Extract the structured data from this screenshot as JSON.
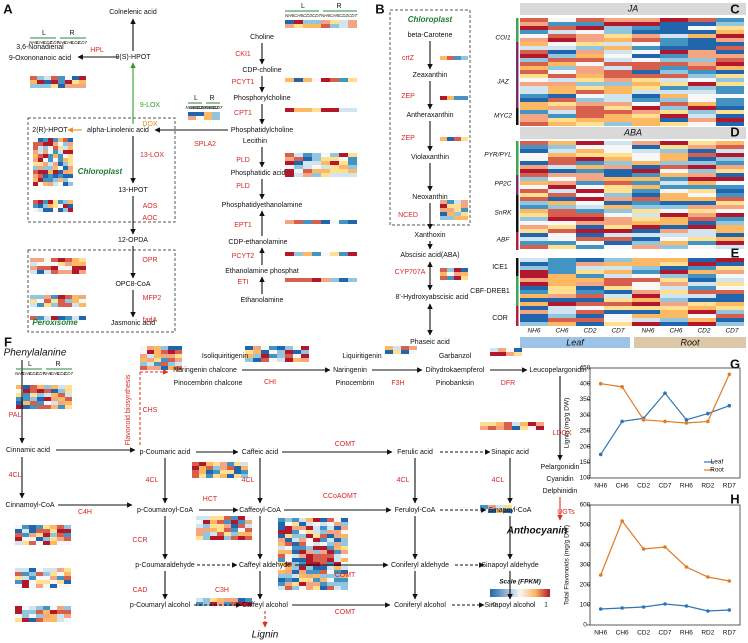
{
  "panels": [
    "A",
    "B",
    "C",
    "D",
    "E",
    "F",
    "G",
    "H"
  ],
  "panel_a": {
    "nodes": [
      "Colnelenic acid",
      "9(S)-HPOT",
      "3,6-Nonadienal",
      "9-Oxononanoic acid",
      "2(R)-HPOT",
      "alpha-Linolenic acid",
      "13-HPOT",
      "12-OPDA",
      "OPC8-CoA",
      "Jasmonic acid",
      "Choline",
      "CDP-choline",
      "Phosphorylcholine",
      "Phosphatidylcholine",
      "Lecithin",
      "Phosphatidic acid",
      "Phosphatidyethanolamine",
      "CDP-ethanolamine",
      "Ethanolamine phosphat",
      "Ethanolamine"
    ],
    "enzymes": [
      "HPL",
      "9-LOX",
      "DOX",
      "13-LOX",
      "AOS",
      "AOC",
      "OPR",
      "MFP2",
      "fadA",
      "CKI1",
      "PCYT1",
      "CPT1",
      "SPLA2",
      "PLD",
      "PLD",
      "EPT1",
      "PCYT2",
      "ETI"
    ],
    "compartments": [
      "Chloroplast",
      "Peroxisome"
    ],
    "tissues": [
      "L",
      "R"
    ],
    "samples": [
      "NH6",
      "CH6",
      "CD2",
      "CD7"
    ]
  },
  "panel_b": {
    "compartment": "Chloroplast",
    "nodes": [
      "beta-Carotene",
      "Zeaxanthin",
      "Antheraxanthin",
      "Violaxanthin",
      "Neoxanthin",
      "Xanthoxin",
      "Abscisic acid(ABA)",
      "8'-Hydroxyabscisic acid",
      "Phaseic acid"
    ],
    "enzymes": [
      "crtZ",
      "ZEP",
      "ZEP",
      "NCED",
      "CYP707A"
    ]
  },
  "panel_cde": {
    "hormones": [
      "JA",
      "ABA"
    ],
    "genes": [
      "COI1",
      "JAZ",
      "MYC2",
      "PYR/PYL",
      "PP2C",
      "SnRK",
      "ABF",
      "ICE1",
      "CBF-DREB1",
      "COR"
    ],
    "samples": [
      "NH6",
      "CH6",
      "CD2",
      "CD7"
    ],
    "tissues": [
      "Leaf",
      "Root"
    ]
  },
  "panel_f": {
    "start": "Phenylalanine",
    "pathway_label": "Flavonoid biosynthesis",
    "nodes": [
      "Isoliquiritigenin",
      "Naringenin chalcone",
      "Pinocembrin chalcone",
      "Liquiritigenin",
      "Naringenin",
      "Pinocembrin",
      "Garbanzol",
      "Dihydrokaempferol",
      "Pinobanksin",
      "Leucopelargonidin",
      "Pelargonidin",
      "Cyanidin",
      "Delphinidin",
      "Cinnamic acid",
      "Cinnamoyl-CoA",
      "p-Coumaric acid",
      "Caffeic acid",
      "Ferulic acid",
      "Sinapic acid",
      "p-Coumaroyl-CoA",
      "Caffeoyl-CoA",
      "Feruloyl-CoA",
      "Sinapoyl-CoA",
      "p-Coumaraldehyde",
      "Caffeyl aldehyde",
      "Coniferyl aldehyde",
      "Sinapoyl aldehyde",
      "p-Coumaryl alcohol",
      "Caffeyl alcohol",
      "Coniferyl alcohol",
      "Sinapoyl alcohol"
    ],
    "enzymes": [
      "PAL",
      "4CL",
      "C4H",
      "CHS",
      "CHI",
      "F3H",
      "DFR",
      "LDOX",
      "UGTs",
      "COMT",
      "4CL",
      "4CL",
      "4CL",
      "4CL",
      "HCT",
      "CCoAOMT",
      "CCR",
      "COMT",
      "CAD",
      "C3H",
      "COMT"
    ],
    "products": [
      "Anthocyanin",
      "Lignin"
    ],
    "tissues": [
      "L",
      "R"
    ],
    "samples": [
      "NH6",
      "CH6",
      "CD2",
      "CD7"
    ],
    "scale": {
      "title": "Scale (FPKM)",
      "ticks": [
        0,
        1
      ]
    }
  },
  "chart_data": [
    {
      "type": "line",
      "y_label": "Lignin (mg/g DW)",
      "categories": [
        "NH6",
        "CH6",
        "CD2",
        "CD7",
        "RH6",
        "RD2",
        "RD7"
      ],
      "series": [
        {
          "name": "Leaf",
          "color": "#2f75b5",
          "values": [
            175,
            280,
            290,
            370,
            285,
            305,
            330
          ]
        },
        {
          "name": "Root",
          "color": "#e07b24",
          "values": [
            400,
            390,
            285,
            280,
            275,
            280,
            430
          ]
        }
      ],
      "ylim": [
        100,
        450
      ],
      "yticks": [
        100,
        150,
        200,
        250,
        300,
        350,
        400,
        450
      ],
      "legend": "lower right"
    },
    {
      "type": "line",
      "y_label": "Total Flavonoids (mg/g DW)",
      "categories": [
        "NH6",
        "CH6",
        "CD2",
        "CD7",
        "RH6",
        "RD2",
        "RD7"
      ],
      "series": [
        {
          "name": "Leaf",
          "color": "#2f75b5",
          "values": [
            80,
            85,
            90,
            105,
            95,
            70,
            75
          ]
        },
        {
          "name": "Root",
          "color": "#e07b24",
          "values": [
            250,
            520,
            380,
            390,
            290,
            240,
            220
          ]
        }
      ],
      "ylim": [
        0,
        600
      ],
      "yticks": [
        0,
        100,
        200,
        300,
        400,
        500,
        600
      ],
      "legend": "none"
    }
  ]
}
